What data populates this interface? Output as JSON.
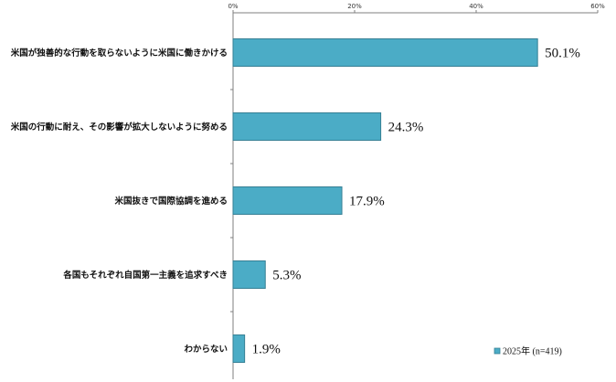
{
  "chart_data": {
    "type": "bar",
    "orientation": "horizontal",
    "categories": [
      "米国が独善的な行動を取らないように米国に働きかける",
      "米国の行動に耐え、その影響が拡大しないように努める",
      "米国抜きで国際協調を進める",
      "各国もそれぞれ自国第一主義を追求すべき",
      "わからない"
    ],
    "series": [
      {
        "name": "2025年 (n=419)",
        "values": [
          50.1,
          24.3,
          17.9,
          5.3,
          1.9
        ],
        "data_labels": [
          "50.1%",
          "24.3%",
          "17.9%",
          "5.3%",
          "1.9%"
        ]
      }
    ],
    "x_ticks": [
      0,
      20,
      40,
      60
    ],
    "x_tick_labels": [
      "0%",
      "20%",
      "40%",
      "60%"
    ],
    "xlim": [
      0,
      60
    ],
    "axis_position": "top",
    "grid": false,
    "legend_position": "bottom-right",
    "colors": {
      "bar_fill": "#4BACC6",
      "bar_stroke": "#357F94",
      "axis": "#7F7F7F"
    }
  }
}
